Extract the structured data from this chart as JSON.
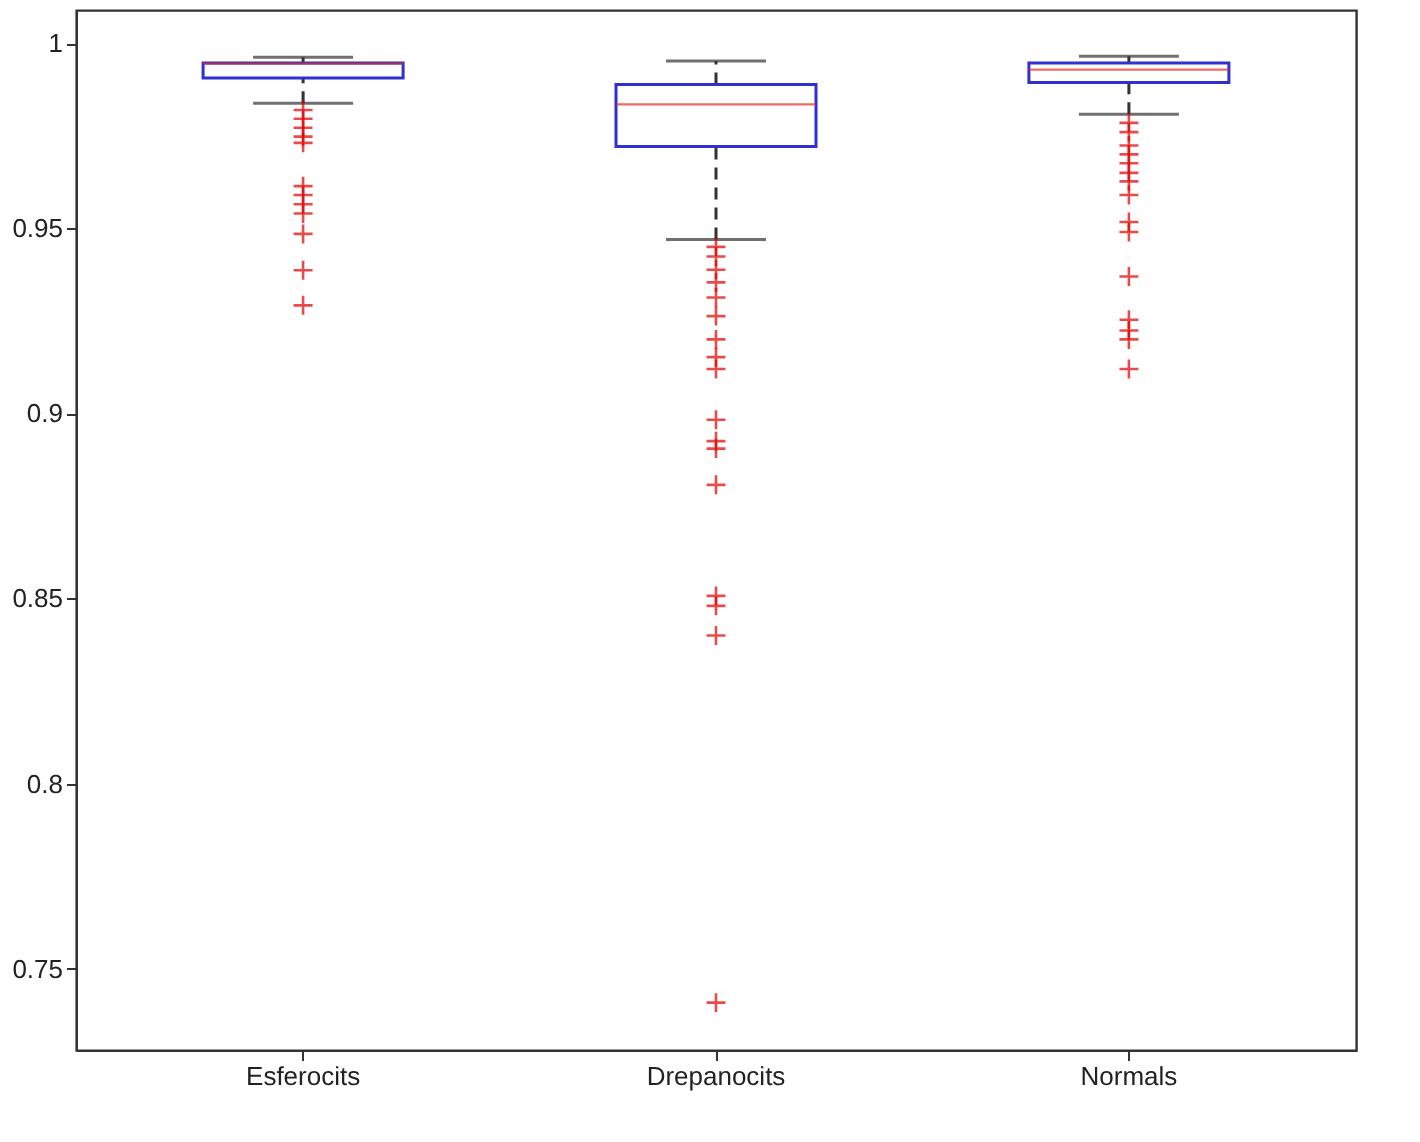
{
  "chart_data": {
    "type": "box",
    "categories": [
      "Esferocits",
      "Drepanocits",
      "Normals"
    ],
    "series": [
      {
        "color": "#3030d0",
        "boxes": [
          {
            "low": 0.9838,
            "q1": 0.9906,
            "median": 0.9945,
            "q3": 0.9947,
            "high": 0.9962,
            "outliers": [
              0.982,
              0.9796,
              0.9772,
              0.9748,
              0.9731,
              0.9614,
              0.959,
              0.9565,
              0.954,
              0.9485,
              0.9387,
              0.9292
            ]
          },
          {
            "low": 0.947,
            "q1": 0.9721,
            "median": 0.9835,
            "q3": 0.9889,
            "high": 0.9952,
            "outliers": [
              0.945,
              0.9424,
              0.9388,
              0.9354,
              0.9313,
              0.9263,
              0.92,
              0.9152,
              0.912,
              0.8983,
              0.8925,
              0.8905,
              0.8807,
              0.8507,
              0.848,
              0.84,
              0.7408
            ]
          },
          {
            "low": 0.9808,
            "q1": 0.9894,
            "median": 0.9929,
            "q3": 0.9947,
            "high": 0.9965,
            "outliers": [
              0.9785,
              0.976,
              0.9724,
              0.97,
              0.9676,
              0.965,
              0.9627,
              0.959,
              0.9517,
              0.949,
              0.937,
              0.9253,
              0.9224,
              0.92,
              0.912
            ]
          }
        ]
      }
    ],
    "ylim": [
      0.728,
      1.009
    ],
    "yticks": [
      0.75,
      0.8,
      0.85,
      0.9,
      0.95,
      1
    ],
    "marker": "cross",
    "grid": false
  }
}
